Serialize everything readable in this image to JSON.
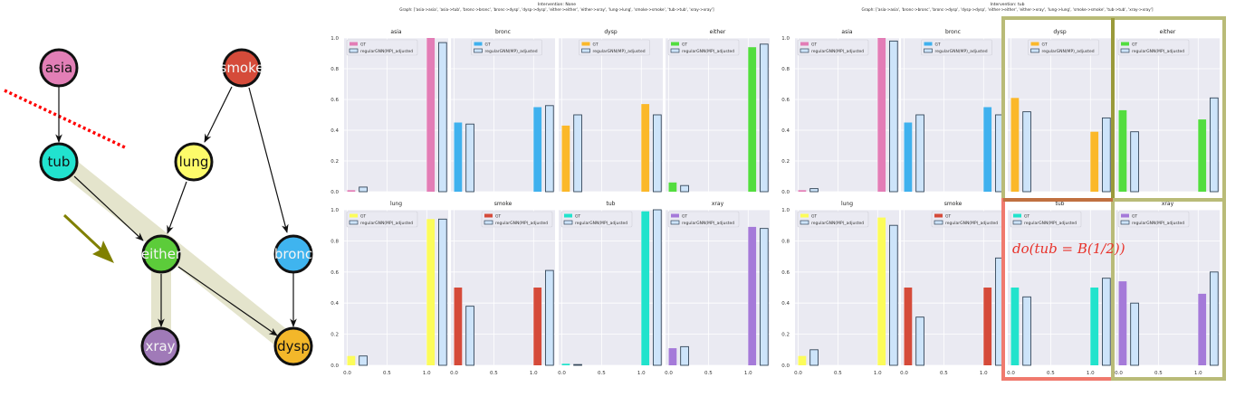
{
  "diagram": {
    "nodes": {
      "asia": {
        "label": "asia",
        "color": "#e27fb6"
      },
      "smoke": {
        "label": "smoke",
        "color": "#d54b3a"
      },
      "tub": {
        "label": "tub",
        "color": "#21e3cf"
      },
      "lung": {
        "label": "lung",
        "color": "#fdfb6a"
      },
      "either": {
        "label": "either",
        "color": "#5ccc3a"
      },
      "bronc": {
        "label": "bronc",
        "color": "#3fb4ef"
      },
      "xray": {
        "label": "xray",
        "color": "#a07ab8"
      },
      "dysp": {
        "label": "dysp",
        "color": "#f3b72a"
      }
    },
    "cut_color": "#ff0000",
    "path_highlight_color": "#e4e4cc",
    "arrow_color": "#808000"
  },
  "annotation": "do(tub = B(1/2))",
  "highlight_colors": {
    "olive": "#b9bb78",
    "olive_dark": "#9a9a3a",
    "red": "#f07a6e"
  },
  "legend": {
    "gt": "GT",
    "model": "regularGNN(MP)_adjusted"
  },
  "model_color": {
    "fill": "#cde4fa",
    "stroke": "#34475a"
  },
  "axes": {
    "yticks": [
      "0.0",
      "0.2",
      "0.4",
      "0.6",
      "0.8",
      "1.0"
    ],
    "xticks": [
      "0.0",
      "0.5",
      "1.0"
    ],
    "ylim": [
      0,
      1
    ],
    "xlim": [
      -0.04,
      1.27
    ]
  },
  "chart_data": [
    {
      "type": "bar",
      "intervention": "Intervention: None",
      "graph": "Graph: ['asia->asia', 'asia->tub', 'bronc->bronc', 'bronc->dysp', 'dysp->dysp', 'either->either', 'either->xray', 'lung->lung', 'smoke->smoke', 'tub->tub', 'xray->xray']",
      "x": [
        0,
        1
      ],
      "panels": [
        {
          "title": "asia",
          "color": "#e37db6",
          "legend": "upper-left",
          "gt": [
            0.01,
            1.0
          ],
          "model": [
            0.03,
            0.97
          ]
        },
        {
          "title": "bronc",
          "color": "#3fb1ee",
          "legend": "upper-center",
          "gt": [
            0.45,
            0.55
          ],
          "model": [
            0.44,
            0.56
          ]
        },
        {
          "title": "dysp",
          "color": "#fbb829",
          "legend": "upper-center",
          "gt": [
            0.43,
            0.57
          ],
          "model": [
            0.5,
            0.5
          ]
        },
        {
          "title": "either",
          "color": "#53dd3f",
          "legend": "upper-left",
          "gt": [
            0.06,
            0.94
          ],
          "model": [
            0.04,
            0.96
          ]
        },
        {
          "title": "lung",
          "color": "#fcfc5a",
          "legend": "upper-left",
          "gt": [
            0.06,
            0.94
          ],
          "model": [
            0.06,
            0.94
          ]
        },
        {
          "title": "smoke",
          "color": "#d54b3a",
          "legend": "upper-right",
          "gt": [
            0.5,
            0.5
          ],
          "model": [
            0.38,
            0.61
          ]
        },
        {
          "title": "tub",
          "color": "#21e3cc",
          "legend": "upper-left",
          "gt": [
            0.01,
            0.99
          ],
          "model": [
            0.005,
            1.0
          ]
        },
        {
          "title": "xray",
          "color": "#a57ad9",
          "legend": "upper-left",
          "gt": [
            0.11,
            0.89
          ],
          "model": [
            0.12,
            0.88
          ]
        }
      ]
    },
    {
      "type": "bar",
      "intervention": "Intervention: tub",
      "graph": "Graph: ['asia->asia', 'bronc->bronc', 'bronc->dysp', 'dysp->dysp', 'either->either', 'either->xray', 'lung->lung', 'smoke->smoke', 'tub->tub', 'xray->xray']",
      "x": [
        0,
        1
      ],
      "panels": [
        {
          "title": "asia",
          "color": "#e37db6",
          "legend": "upper-left",
          "gt": [
            0.01,
            1.0
          ],
          "model": [
            0.02,
            0.98
          ]
        },
        {
          "title": "bronc",
          "color": "#3fb1ee",
          "legend": "upper-center",
          "gt": [
            0.45,
            0.55
          ],
          "model": [
            0.5,
            0.5
          ]
        },
        {
          "title": "dysp",
          "color": "#fbb829",
          "legend": "upper-center",
          "gt": [
            0.61,
            0.39
          ],
          "model": [
            0.52,
            0.48
          ]
        },
        {
          "title": "either",
          "color": "#53dd3f",
          "legend": "upper-left",
          "gt": [
            0.53,
            0.47
          ],
          "model": [
            0.39,
            0.61
          ]
        },
        {
          "title": "lung",
          "color": "#fcfc5a",
          "legend": "upper-left",
          "gt": [
            0.06,
            0.95
          ],
          "model": [
            0.1,
            0.9
          ]
        },
        {
          "title": "smoke",
          "color": "#d54b3a",
          "legend": "upper-right",
          "gt": [
            0.5,
            0.5
          ],
          "model": [
            0.31,
            0.69
          ]
        },
        {
          "title": "tub",
          "color": "#21e3cc",
          "legend": "upper-left",
          "gt": [
            0.5,
            0.5
          ],
          "model": [
            0.44,
            0.56
          ]
        },
        {
          "title": "xray",
          "color": "#a57ad9",
          "legend": "upper-left",
          "gt": [
            0.54,
            0.46
          ],
          "model": [
            0.4,
            0.6
          ]
        }
      ]
    }
  ]
}
